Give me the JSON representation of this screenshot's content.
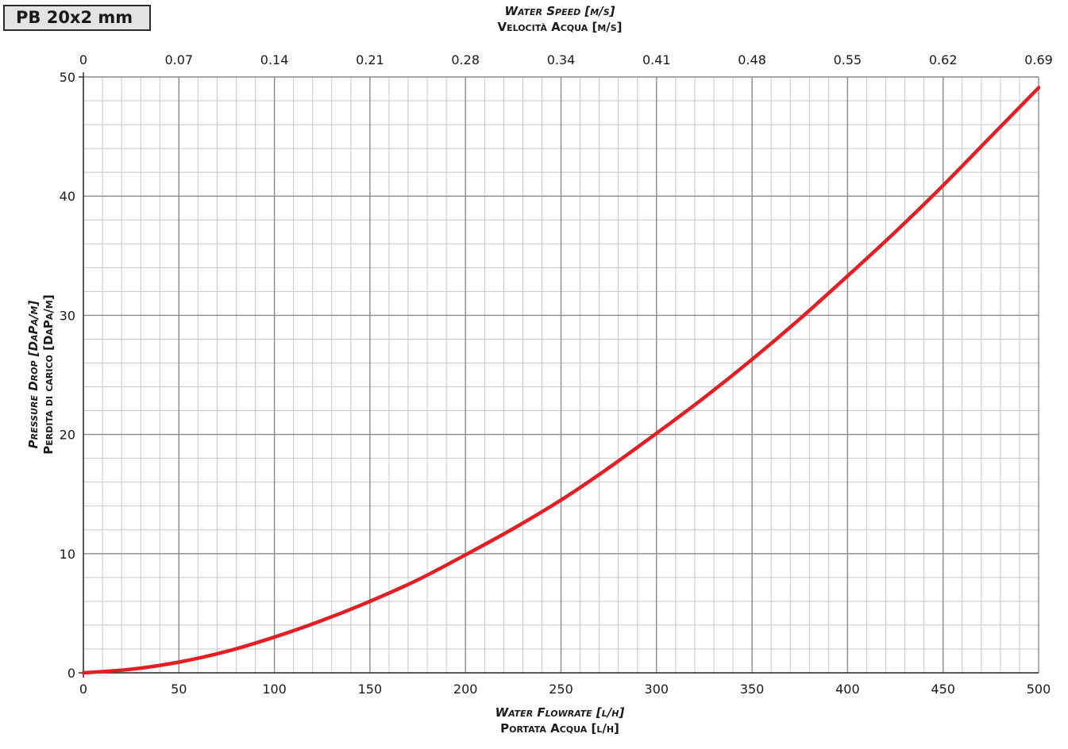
{
  "chart_data": {
    "type": "line",
    "title": "PB 20x2 mm",
    "x_bottom": {
      "label_en": "Water Flowrate [l/h]",
      "label_it": "Portata Acqua [l/h]",
      "range": [
        0,
        500
      ],
      "ticks": [
        "0",
        "50",
        "100",
        "150",
        "200",
        "250",
        "300",
        "350",
        "400",
        "450",
        "500"
      ]
    },
    "x_top": {
      "label_en": "Water Speed [m/s]",
      "label_it": "Velocità Acqua [m/s]",
      "range": [
        0,
        0.69
      ],
      "ticks": [
        "0",
        "0.07",
        "0.14",
        "0.21",
        "0.28",
        "0.34",
        "0.41",
        "0.48",
        "0.55",
        "0.62",
        "0.69"
      ]
    },
    "y": {
      "label_en": "Pressure Drop [DaPa/m]",
      "label_it": "Perdita di carico [DaPa/m]",
      "range": [
        0,
        50
      ],
      "ticks": [
        "0",
        "10",
        "20",
        "30",
        "40",
        "50"
      ]
    },
    "grid": true,
    "series": [
      {
        "color": "#e31e24",
        "x": [
          0,
          25,
          50,
          75,
          100,
          125,
          150,
          175,
          200,
          225,
          250,
          275,
          300,
          325,
          350,
          375,
          400,
          425,
          450,
          475,
          500
        ],
        "y": [
          0,
          0.3,
          0.9,
          1.8,
          3.0,
          4.4,
          6.0,
          7.8,
          9.9,
          12.1,
          14.5,
          17.2,
          20.1,
          23.1,
          26.3,
          29.7,
          33.3,
          37.0,
          40.9,
          45.0,
          49.1
        ]
      }
    ]
  }
}
